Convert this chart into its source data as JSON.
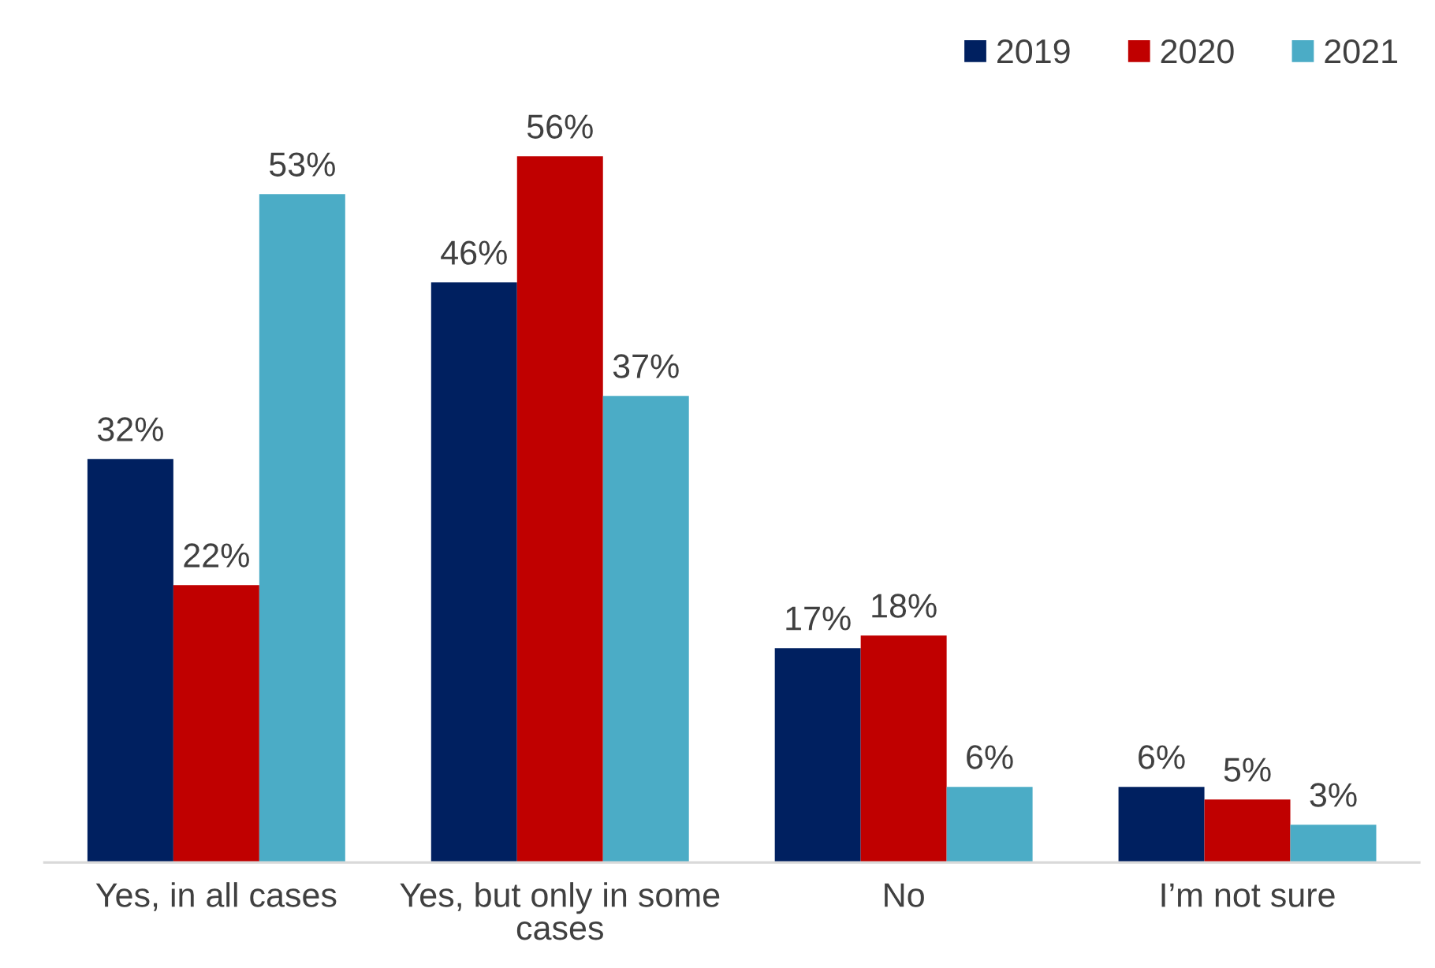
{
  "chart_data": {
    "type": "bar",
    "categories": [
      "Yes, in all cases",
      "Yes, but only in some cases",
      "No",
      "I’m not sure"
    ],
    "series": [
      {
        "name": "2019",
        "color": "#002060",
        "values": [
          32,
          46,
          17,
          6
        ],
        "value_labels": [
          "32%",
          "46%",
          "17%",
          "6%"
        ]
      },
      {
        "name": "2020",
        "color": "#c00000",
        "values": [
          22,
          56,
          18,
          5
        ],
        "value_labels": [
          "22%",
          "56%",
          "18%",
          "5%"
        ]
      },
      {
        "name": "2021",
        "color": "#4bacc6",
        "values": [
          53,
          37,
          6,
          3
        ],
        "value_labels": [
          "53%",
          "37%",
          "6%",
          "3%"
        ]
      }
    ],
    "tick_labels": "x",
    "legend": "top right"
  }
}
